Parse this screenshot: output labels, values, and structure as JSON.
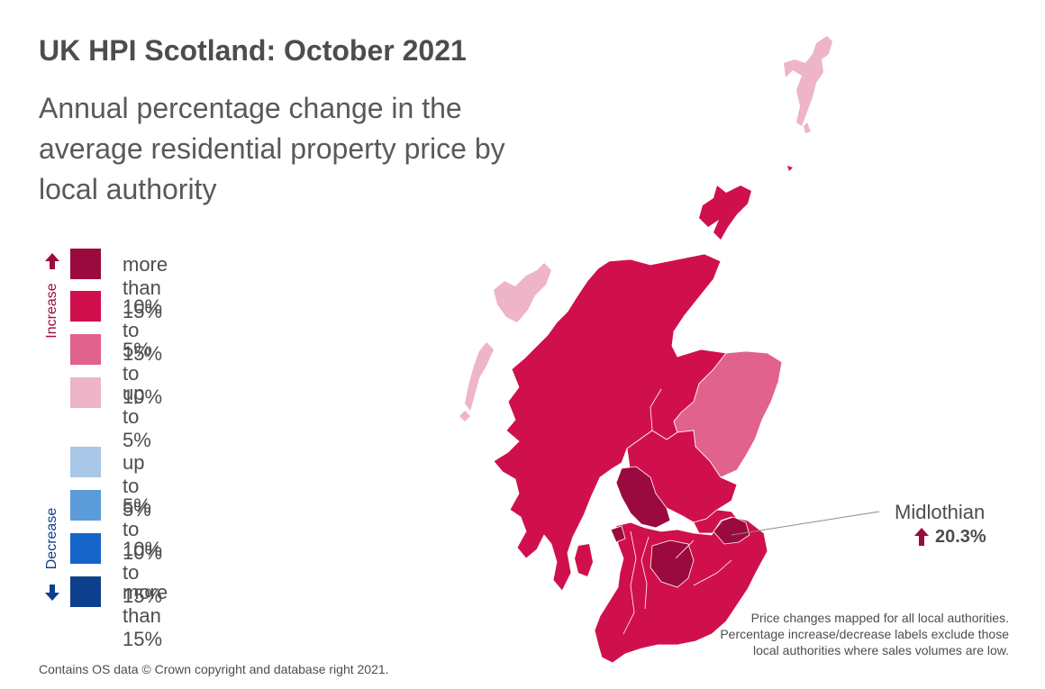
{
  "title": "UK HPI Scotland: October 2021",
  "subtitle": "Annual percentage change in the average residential property price by local authority",
  "legend": {
    "increase_label": "Increase",
    "decrease_label": "Decrease",
    "increase": [
      {
        "label": "more than 15%",
        "color": "#9b0a3f"
      },
      {
        "label": "10% to 15%",
        "color": "#d0104c"
      },
      {
        "label": "5% to 10%",
        "color": "#e0628d"
      },
      {
        "label": "up to 5%",
        "color": "#eeb4c7"
      }
    ],
    "decrease": [
      {
        "label": "up to 5%",
        "color": "#a9c7e6"
      },
      {
        "label": "5% to 10%",
        "color": "#5b9bd9"
      },
      {
        "label": "10% to 15%",
        "color": "#1565c8"
      },
      {
        "label": "more than 15%",
        "color": "#0e3f8c"
      }
    ]
  },
  "callout": {
    "name": "Midlothian",
    "value": "20.3%",
    "direction": "increase"
  },
  "source": "Contains OS data © Crown copyright and database right 2021.",
  "note": "Price changes mapped for all local authorities. Percentage increase/decrease labels exclude those local authorities where sales volumes are low."
}
